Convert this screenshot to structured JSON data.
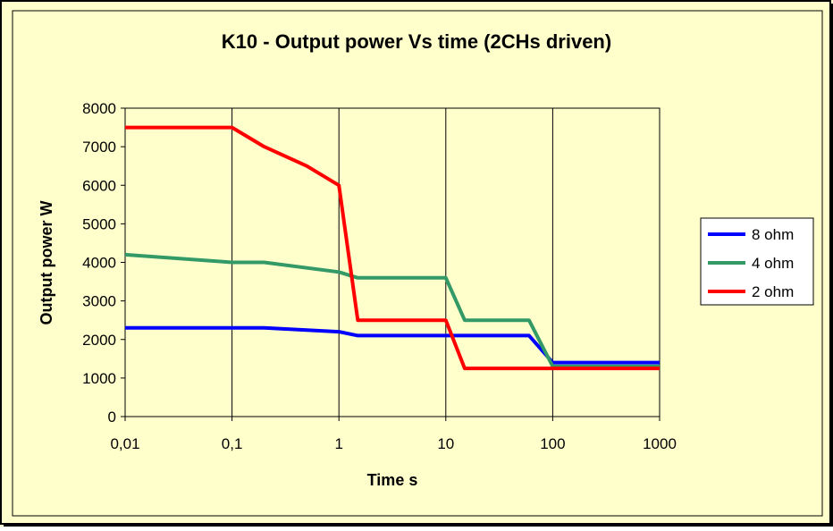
{
  "chart_data": {
    "type": "line",
    "title": "K10 - Output power Vs time (2CHs driven)",
    "xlabel": "Time s",
    "ylabel": "Output power W",
    "x_scale": "log",
    "xlim": [
      0.01,
      1000
    ],
    "ylim": [
      0,
      8000
    ],
    "x_ticks": [
      {
        "value": 0.01,
        "label": "0,01"
      },
      {
        "value": 0.1,
        "label": "0,1"
      },
      {
        "value": 1,
        "label": "1"
      },
      {
        "value": 10,
        "label": "10"
      },
      {
        "value": 100,
        "label": "100"
      },
      {
        "value": 1000,
        "label": "1000"
      }
    ],
    "y_ticks": [
      {
        "value": 0,
        "label": "0"
      },
      {
        "value": 1000,
        "label": "1000"
      },
      {
        "value": 2000,
        "label": "2000"
      },
      {
        "value": 3000,
        "label": "3000"
      },
      {
        "value": 4000,
        "label": "4000"
      },
      {
        "value": 5000,
        "label": "5000"
      },
      {
        "value": 6000,
        "label": "6000"
      },
      {
        "value": 7000,
        "label": "7000"
      },
      {
        "value": 8000,
        "label": "8000"
      }
    ],
    "grid": {
      "vertical": true,
      "horizontal": false
    },
    "legend_position": "right",
    "series": [
      {
        "name": "8 ohm",
        "color": "#0000ff",
        "points": [
          {
            "x": 0.01,
            "y": 2300
          },
          {
            "x": 0.2,
            "y": 2300
          },
          {
            "x": 1,
            "y": 2200
          },
          {
            "x": 1.5,
            "y": 2100
          },
          {
            "x": 60,
            "y": 2100
          },
          {
            "x": 100,
            "y": 1400
          },
          {
            "x": 1000,
            "y": 1400
          }
        ]
      },
      {
        "name": "4 ohm",
        "color": "#339966",
        "points": [
          {
            "x": 0.01,
            "y": 4200
          },
          {
            "x": 0.1,
            "y": 4000
          },
          {
            "x": 0.2,
            "y": 4000
          },
          {
            "x": 1,
            "y": 3750
          },
          {
            "x": 1.5,
            "y": 3600
          },
          {
            "x": 10,
            "y": 3600
          },
          {
            "x": 15,
            "y": 2500
          },
          {
            "x": 60,
            "y": 2500
          },
          {
            "x": 100,
            "y": 1300
          },
          {
            "x": 1000,
            "y": 1300
          }
        ]
      },
      {
        "name": "2 ohm",
        "color": "#ff0000",
        "points": [
          {
            "x": 0.01,
            "y": 7500
          },
          {
            "x": 0.1,
            "y": 7500
          },
          {
            "x": 0.2,
            "y": 7000
          },
          {
            "x": 0.5,
            "y": 6500
          },
          {
            "x": 1,
            "y": 6000
          },
          {
            "x": 1.5,
            "y": 2500
          },
          {
            "x": 10,
            "y": 2500
          },
          {
            "x": 15,
            "y": 1250
          },
          {
            "x": 1000,
            "y": 1250
          }
        ]
      }
    ]
  },
  "colors": {
    "background": "#ffffcc",
    "plot_area": "#ffffcc",
    "frame": "#000000",
    "gridline": "#000000"
  }
}
